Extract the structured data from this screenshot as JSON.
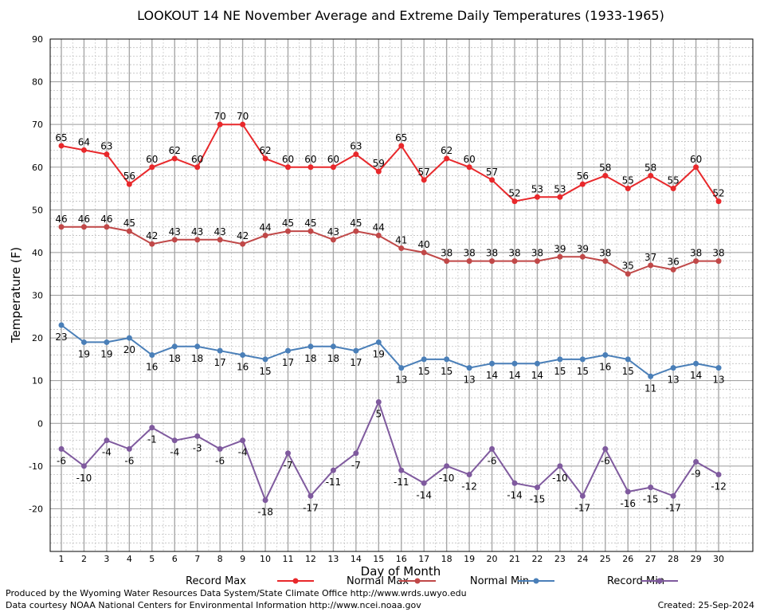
{
  "chart_data": {
    "type": "line",
    "title": "LOOKOUT 14 NE November Average and Extreme Daily Temperatures (1933-1965)",
    "xlabel": "Day of Month",
    "ylabel": "Temperature (F)",
    "x": [
      1,
      2,
      3,
      4,
      5,
      6,
      7,
      8,
      9,
      10,
      11,
      12,
      13,
      14,
      15,
      16,
      17,
      18,
      19,
      20,
      21,
      22,
      23,
      24,
      25,
      26,
      27,
      28,
      29,
      30
    ],
    "ylim": [
      -30,
      90
    ],
    "yticks": [
      -20,
      -10,
      0,
      10,
      20,
      30,
      40,
      50,
      60,
      70,
      80,
      90
    ],
    "grid": true,
    "legend_position": "bottom",
    "series": [
      {
        "name": "Record Max",
        "color": "#e8282b",
        "values": [
          65,
          64,
          63,
          56,
          60,
          62,
          60,
          70,
          70,
          62,
          60,
          60,
          60,
          63,
          59,
          65,
          57,
          62,
          60,
          57,
          52,
          53,
          53,
          56,
          58,
          55,
          58,
          55,
          60,
          52
        ]
      },
      {
        "name": "Normal Max",
        "color": "#c04848",
        "values": [
          46,
          46,
          46,
          45,
          42,
          43,
          43,
          43,
          42,
          44,
          45,
          45,
          43,
          45,
          44,
          41,
          40,
          38,
          38,
          38,
          38,
          38,
          39,
          39,
          38,
          35,
          37,
          36,
          38,
          38
        ]
      },
      {
        "name": "Normal Min",
        "color": "#4a7fb8",
        "values": [
          23,
          19,
          19,
          20,
          16,
          18,
          18,
          17,
          16,
          15,
          17,
          18,
          18,
          17,
          19,
          13,
          15,
          15,
          13,
          14,
          14,
          14,
          15,
          15,
          16,
          15,
          11,
          13,
          14,
          13
        ]
      },
      {
        "name": "Record Min",
        "color": "#7f5a9e",
        "values": [
          -6,
          -10,
          -4,
          -6,
          -1,
          -4,
          -3,
          -6,
          -4,
          -18,
          -7,
          -17,
          -11,
          -7,
          5,
          -11,
          -14,
          -10,
          -12,
          -6,
          -14,
          -15,
          -10,
          -17,
          -6,
          -16,
          -15,
          -17,
          -9,
          -12
        ]
      }
    ]
  },
  "footer": {
    "line1": "Produced by the Wyoming Water Resources Data System/State Climate Office http://www.wrds.uwyo.edu",
    "line2": "Data courtesy NOAA National Centers for Environmental Information http://www.ncei.noaa.gov",
    "created": "Created:  25-Sep-2024"
  }
}
